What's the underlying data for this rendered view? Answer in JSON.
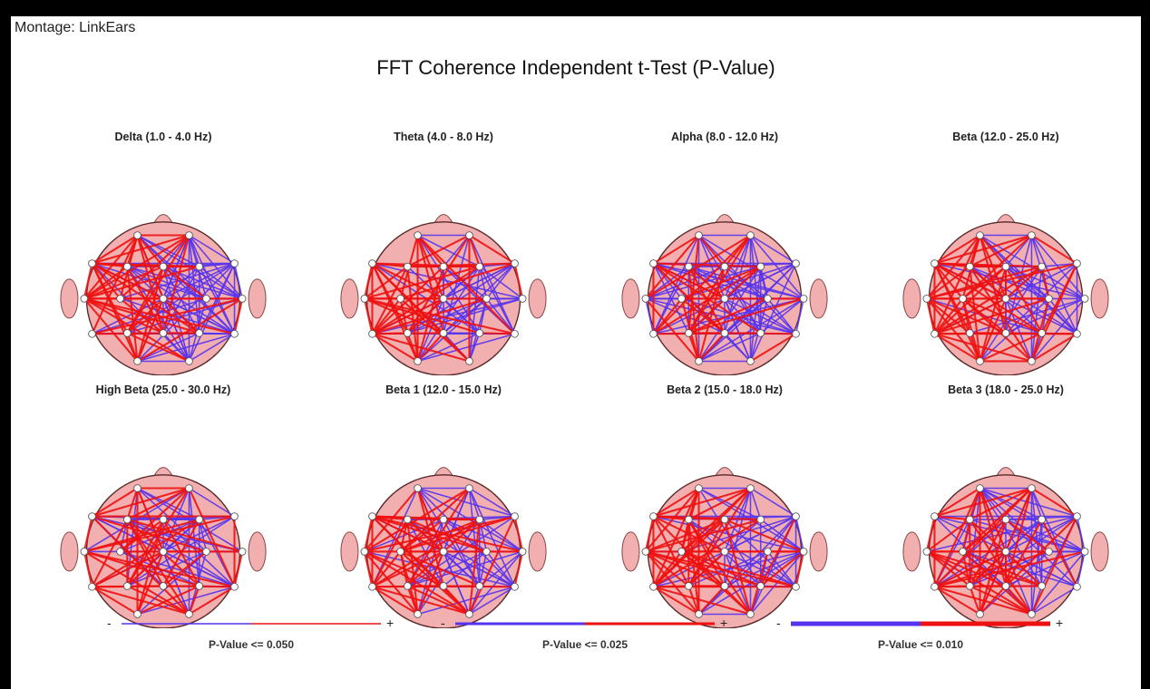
{
  "montage": "Montage:  LinkEars",
  "title": "FFT Coherence Independent t-Test  (P-Value)",
  "colors": {
    "head": "#F2AFAF",
    "positive": "#EE1111",
    "negative": "#5533EE",
    "electrode": "#FFFFFF"
  },
  "maps": [
    {
      "label": "Delta (1.0 - 4.0 Hz)"
    },
    {
      "label": "Theta (4.0 - 8.0 Hz)"
    },
    {
      "label": "Alpha (8.0 - 12.0 Hz)"
    },
    {
      "label": "Beta (12.0 - 25.0 Hz)"
    },
    {
      "label": "High Beta (25.0 - 30.0 Hz)"
    },
    {
      "label": "Beta 1 (12.0 - 15.0 Hz)"
    },
    {
      "label": "Beta 2 (15.0 - 18.0 Hz)"
    },
    {
      "label": "Beta 3 (18.0 - 25.0 Hz)"
    }
  ],
  "legends": [
    {
      "text": "P-Value <= 0.050",
      "minus": "-",
      "plus": "+"
    },
    {
      "text": "P-Value <= 0.025",
      "minus": "-",
      "plus": "+"
    },
    {
      "text": "P-Value <= 0.010",
      "minus": "-",
      "plus": "+"
    }
  ]
}
